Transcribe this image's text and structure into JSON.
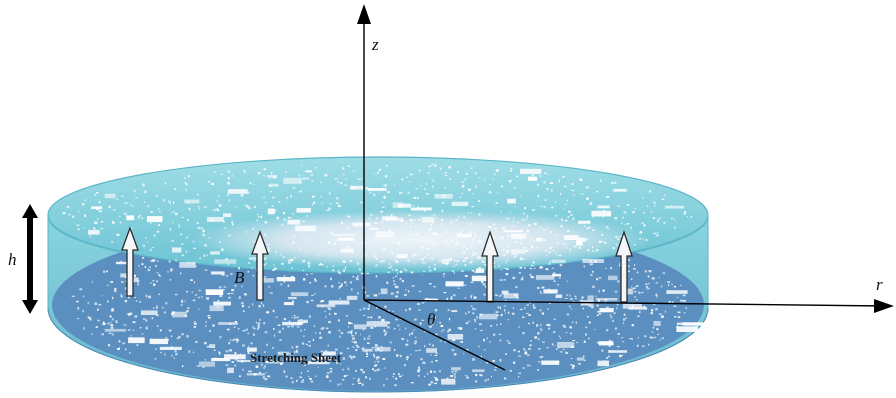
{
  "diagram": {
    "labels": {
      "z_axis": "z",
      "r_axis": "r",
      "theta": "θ",
      "height": "h",
      "field": "B",
      "sheet": "Stretching Sheet"
    },
    "colors": {
      "upper_fluid": "#7fcfdc",
      "lower_sheet": "#5a8fc0",
      "rim_stroke": "#5ab6c8",
      "surface_highlight": "#d6e8f2",
      "arrow_fill": "#f4f7fa",
      "arrow_stroke": "#2b2b2b",
      "axis": "#000000"
    }
  }
}
